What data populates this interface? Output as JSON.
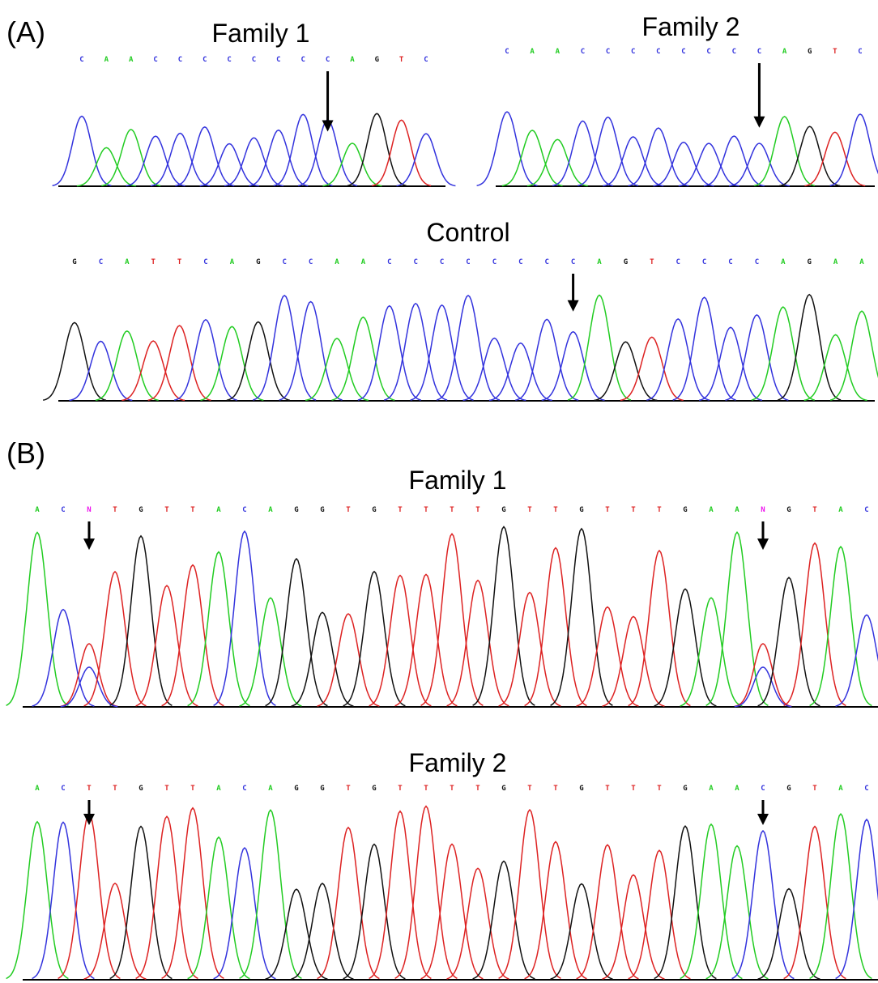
{
  "panels": [
    {
      "label": "(A)",
      "tracks": [
        {
          "title": "Family 1",
          "bases": [
            "C",
            "A",
            "A",
            "C",
            "C",
            "C",
            "C",
            "C",
            "C",
            "C",
            "C",
            "A",
            "G",
            "T",
            "C"
          ]
        },
        {
          "title": "Family 2",
          "bases": [
            "C",
            "A",
            "A",
            "C",
            "C",
            "C",
            "C",
            "C",
            "C",
            "C",
            "C",
            "A",
            "G",
            "T",
            "C"
          ]
        },
        {
          "title": "Control",
          "bases": [
            "G",
            "C",
            "A",
            "T",
            "T",
            "C",
            "A",
            "G",
            "C",
            "C",
            "A",
            "A",
            "C",
            "C",
            "C",
            "C",
            "C",
            "C",
            "C",
            "C",
            "A",
            "G",
            "T",
            "C",
            "C",
            "C",
            "C",
            "A",
            "G",
            "A",
            "A"
          ]
        }
      ]
    },
    {
      "label": "(B)",
      "tracks": [
        {
          "title": "Family 1",
          "bases": [
            "A",
            "C",
            "N",
            "T",
            "G",
            "T",
            "T",
            "A",
            "C",
            "A",
            "G",
            "G",
            "T",
            "G",
            "T",
            "T",
            "T",
            "T",
            "G",
            "T",
            "T",
            "G",
            "T",
            "T",
            "T",
            "G",
            "A",
            "A",
            "N",
            "G",
            "T",
            "A",
            "C"
          ]
        },
        {
          "title": "Family 2",
          "bases": [
            "A",
            "C",
            "T",
            "T",
            "G",
            "T",
            "T",
            "A",
            "C",
            "A",
            "G",
            "G",
            "T",
            "G",
            "T",
            "T",
            "T",
            "T",
            "G",
            "T",
            "T",
            "G",
            "T",
            "T",
            "T",
            "G",
            "A",
            "A",
            "C",
            "G",
            "T",
            "A",
            "C"
          ]
        }
      ]
    }
  ]
}
